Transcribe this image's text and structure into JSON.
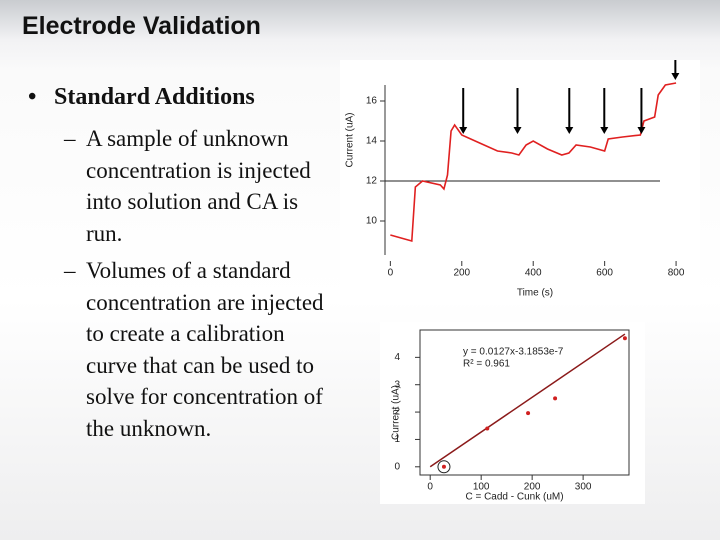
{
  "title": "Electrode Validation",
  "bullets": [
    {
      "text": "Standard Additions",
      "subbullets": [
        "A sample of unknown concentration is injected into solution and CA is run.",
        "Volumes of a standard concentration are injected to create a calibration curve that can be used to solve for concentration of the unknown."
      ]
    }
  ],
  "chart_data": [
    {
      "type": "line",
      "x_label": "Time (s)",
      "y_label": "Current (uA)",
      "x": [
        0,
        40,
        60,
        70,
        90,
        140,
        150,
        160,
        170,
        180,
        200,
        250,
        300,
        340,
        360,
        380,
        400,
        440,
        480,
        500,
        520,
        560,
        600,
        610,
        650,
        700,
        710,
        740,
        750,
        770,
        800
      ],
      "series": [
        {
          "color": "#e02020",
          "values": [
            9.3,
            9.1,
            9.0,
            11.7,
            12.0,
            11.8,
            11.6,
            12.3,
            14.5,
            14.8,
            14.3,
            13.9,
            13.5,
            13.4,
            13.3,
            13.8,
            14.0,
            13.6,
            13.3,
            13.4,
            13.8,
            13.7,
            13.5,
            14.1,
            14.2,
            14.3,
            15.0,
            15.2,
            16.3,
            16.8,
            16.9
          ]
        }
      ],
      "reference_line": 12,
      "injection_times": [
        204,
        356,
        501,
        599,
        703,
        798
      ],
      "xlim": [
        -15,
        825
      ],
      "ylim": [
        8.3,
        17.8
      ],
      "xticks": [
        0,
        200,
        400,
        600,
        800
      ],
      "yticks": [
        10,
        12,
        14,
        16
      ]
    },
    {
      "type": "scatter",
      "x_label": "C = Cadd - Cunk (uM)",
      "y_label": "Current (uA)",
      "x": [
        27,
        112,
        192,
        245,
        382
      ],
      "values": [
        0,
        1.4,
        1.96,
        2.5,
        4.7
      ],
      "color": "#d02020",
      "fit": {
        "slope": 0.0127,
        "intercept": -3.1853e-07,
        "color": "#8b1a1a"
      },
      "fit_equation": "y = 0.0127x-3.1853e-7",
      "r_squared": "R² = 0.961",
      "xlim": [
        -20,
        390
      ],
      "ylim": [
        -0.3,
        5
      ],
      "xticks": [
        0,
        100,
        200,
        300
      ],
      "yticks": [
        0,
        1,
        2,
        3,
        4
      ]
    }
  ]
}
